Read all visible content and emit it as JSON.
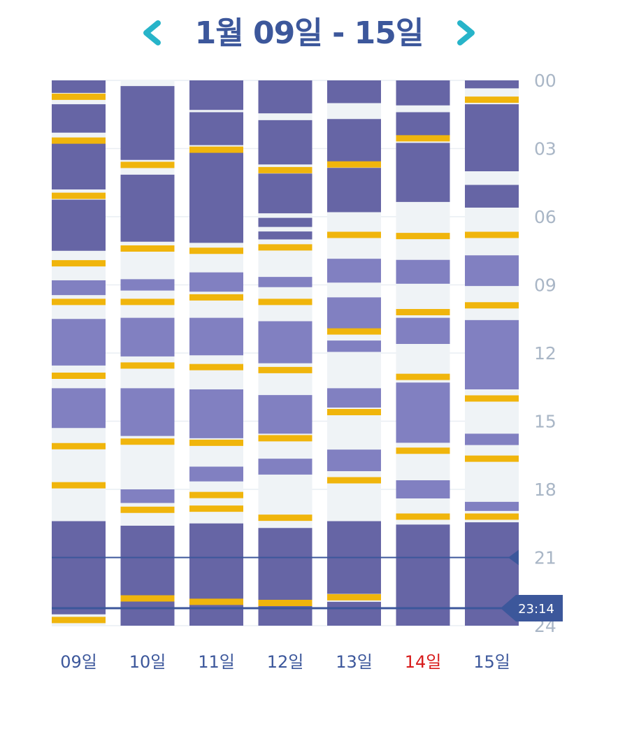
{
  "header": {
    "title": "1월 09일 - 15일",
    "prev_icon": "chevron-left-icon",
    "next_icon": "chevron-right-icon"
  },
  "colors": {
    "deep_sleep": "#6665a5",
    "light_sleep": "#8180c1",
    "awake": "#eff3f6",
    "feeding": "#f0b50c",
    "time_marker": "#3c579b",
    "nav_arrow": "#27b4c9",
    "day_label": "#3c579b",
    "highlight_day": "#d81b1b",
    "axis_label": "#a9b6c6"
  },
  "y_axis": {
    "labels": [
      "00",
      "03",
      "06",
      "09",
      "12",
      "15",
      "18",
      "21",
      "24"
    ],
    "range_hours": [
      0,
      24
    ]
  },
  "current_time": {
    "label": "23:14",
    "hour": 23.23
  },
  "reference_line": {
    "hour": 21.0
  },
  "chart_data": {
    "type": "bar",
    "categories": [
      "09일",
      "10일",
      "11일",
      "12일",
      "13일",
      "14일",
      "15일"
    ],
    "highlight_category": "14일",
    "unit": "hour of day",
    "days": [
      {
        "label": "09일",
        "segments": [
          {
            "kind": "deep",
            "from": 0.0,
            "to": 0.55
          },
          {
            "kind": "deep",
            "from": 1.05,
            "to": 2.3
          },
          {
            "kind": "deep",
            "from": 2.75,
            "to": 4.8
          },
          {
            "kind": "deep",
            "from": 5.25,
            "to": 7.5
          },
          {
            "kind": "light",
            "from": 8.8,
            "to": 9.45
          },
          {
            "kind": "light",
            "from": 10.5,
            "to": 12.55
          },
          {
            "kind": "light",
            "from": 13.55,
            "to": 15.3
          },
          {
            "kind": "deep",
            "from": 19.4,
            "to": 23.5
          }
        ],
        "feedings": [
          0.72,
          2.65,
          5.08,
          8.05,
          9.75,
          13.0,
          16.1,
          17.82,
          23.75
        ]
      },
      {
        "label": "10일",
        "segments": [
          {
            "kind": "deep",
            "from": 0.25,
            "to": 3.5
          },
          {
            "kind": "deep",
            "from": 4.15,
            "to": 7.1
          },
          {
            "kind": "light",
            "from": 8.75,
            "to": 9.25
          },
          {
            "kind": "light",
            "from": 10.45,
            "to": 12.15
          },
          {
            "kind": "light",
            "from": 13.55,
            "to": 15.65
          },
          {
            "kind": "light",
            "from": 18.0,
            "to": 18.6
          },
          {
            "kind": "deep",
            "from": 19.6,
            "to": 24.0
          }
        ],
        "feedings": [
          3.72,
          7.4,
          9.75,
          12.55,
          15.9,
          18.9,
          22.8
        ]
      },
      {
        "label": "11일",
        "segments": [
          {
            "kind": "deep",
            "from": 0.0,
            "to": 1.3
          },
          {
            "kind": "deep",
            "from": 1.4,
            "to": 2.85
          },
          {
            "kind": "deep",
            "from": 3.15,
            "to": 7.15
          },
          {
            "kind": "light",
            "from": 8.45,
            "to": 9.3
          },
          {
            "kind": "light",
            "from": 10.45,
            "to": 12.1
          },
          {
            "kind": "light",
            "from": 13.6,
            "to": 15.75
          },
          {
            "kind": "light",
            "from": 17.0,
            "to": 17.65
          },
          {
            "kind": "deep",
            "from": 19.5,
            "to": 24.0
          }
        ],
        "feedings": [
          3.05,
          7.5,
          9.55,
          12.62,
          15.95,
          18.25,
          18.85,
          22.95
        ]
      },
      {
        "label": "12일",
        "segments": [
          {
            "kind": "deep",
            "from": 0.0,
            "to": 1.45
          },
          {
            "kind": "deep",
            "from": 1.75,
            "to": 3.7
          },
          {
            "kind": "deep",
            "from": 4.1,
            "to": 5.85
          },
          {
            "kind": "deep",
            "from": 6.05,
            "to": 6.45
          },
          {
            "kind": "deep",
            "from": 6.65,
            "to": 7.0
          },
          {
            "kind": "light",
            "from": 8.65,
            "to": 9.1
          },
          {
            "kind": "light",
            "from": 10.6,
            "to": 12.45
          },
          {
            "kind": "light",
            "from": 13.85,
            "to": 15.55
          },
          {
            "kind": "light",
            "from": 16.65,
            "to": 17.35
          },
          {
            "kind": "deep",
            "from": 19.7,
            "to": 24.0
          }
        ],
        "feedings": [
          3.95,
          7.35,
          9.75,
          12.75,
          15.75,
          19.25,
          23.0
        ]
      },
      {
        "label": "13일",
        "segments": [
          {
            "kind": "deep",
            "from": 0.0,
            "to": 1.0
          },
          {
            "kind": "deep",
            "from": 1.7,
            "to": 3.6
          },
          {
            "kind": "deep",
            "from": 3.85,
            "to": 5.8
          },
          {
            "kind": "light",
            "from": 7.85,
            "to": 8.9
          },
          {
            "kind": "light",
            "from": 9.55,
            "to": 11.05
          },
          {
            "kind": "light",
            "from": 11.45,
            "to": 11.95
          },
          {
            "kind": "light",
            "from": 13.55,
            "to": 14.4
          },
          {
            "kind": "light",
            "from": 16.25,
            "to": 17.2
          },
          {
            "kind": "deep",
            "from": 19.4,
            "to": 22.6
          },
          {
            "kind": "deep",
            "from": 22.95,
            "to": 24.0
          }
        ],
        "feedings": [
          3.7,
          6.8,
          11.05,
          14.6,
          17.6,
          22.75
        ]
      },
      {
        "label": "14일",
        "segments": [
          {
            "kind": "deep",
            "from": 0.0,
            "to": 1.1
          },
          {
            "kind": "deep",
            "from": 1.4,
            "to": 2.45
          },
          {
            "kind": "deep",
            "from": 2.75,
            "to": 5.35
          },
          {
            "kind": "light",
            "from": 7.9,
            "to": 8.95
          },
          {
            "kind": "light",
            "from": 10.45,
            "to": 11.6
          },
          {
            "kind": "light",
            "from": 13.3,
            "to": 15.95
          },
          {
            "kind": "light",
            "from": 17.6,
            "to": 18.4
          },
          {
            "kind": "deep",
            "from": 19.55,
            "to": 24.0
          }
        ],
        "feedings": [
          2.55,
          6.85,
          10.2,
          13.05,
          16.3,
          19.2
        ]
      },
      {
        "label": "15일",
        "segments": [
          {
            "kind": "deep",
            "from": 0.0,
            "to": 0.35
          },
          {
            "kind": "deep",
            "from": 1.05,
            "to": 4.0
          },
          {
            "kind": "deep",
            "from": 4.6,
            "to": 5.6
          },
          {
            "kind": "light",
            "from": 7.7,
            "to": 9.05
          },
          {
            "kind": "light",
            "from": 10.55,
            "to": 13.6
          },
          {
            "kind": "light",
            "from": 15.55,
            "to": 16.05
          },
          {
            "kind": "light",
            "from": 18.55,
            "to": 18.95
          },
          {
            "kind": "deep",
            "from": 19.45,
            "to": 24.0
          }
        ],
        "feedings": [
          0.85,
          6.8,
          9.9,
          14.0,
          16.65,
          19.2
        ]
      }
    ]
  }
}
